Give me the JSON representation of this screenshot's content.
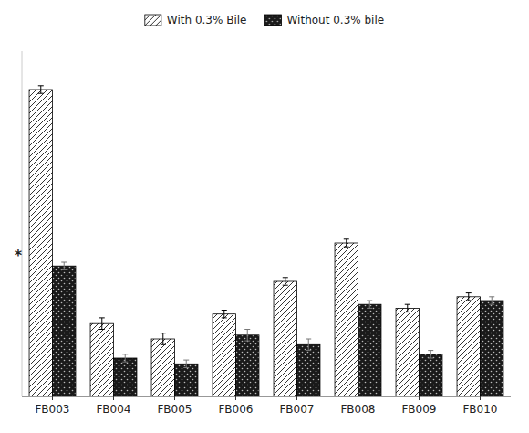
{
  "chart_data": {
    "type": "bar",
    "categories": [
      "FB003",
      "FB004",
      "FB005",
      "FB006",
      "FB007",
      "FB008",
      "FB009",
      "FB010"
    ],
    "series": [
      {
        "name": "With 0.3% Bile",
        "color": "#ffffff",
        "values": [
          160,
          38,
          30,
          43,
          60,
          80,
          46,
          52
        ],
        "errors": [
          2,
          3,
          3,
          2,
          2,
          2,
          2,
          2
        ]
      },
      {
        "name": "Without 0.3% bile",
        "color": "#1a1a1a",
        "values": [
          68,
          20,
          17,
          32,
          27,
          48,
          22,
          50
        ],
        "errors": [
          2,
          2,
          2,
          3,
          3,
          2,
          2,
          2
        ]
      }
    ],
    "ylim": [
      0,
      180
    ],
    "tick_labels": "x",
    "legend": "top",
    "grid": false,
    "annotations": [
      {
        "text": "*",
        "category": "FB003"
      }
    ]
  }
}
